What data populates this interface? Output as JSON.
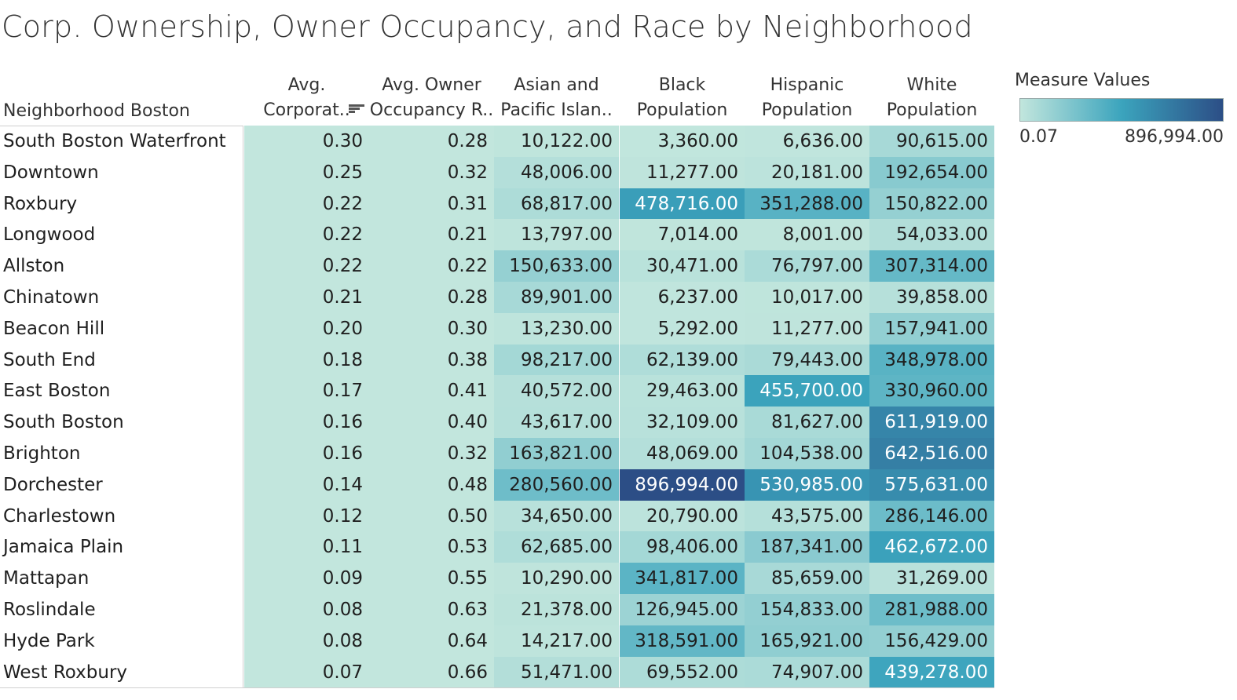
{
  "title": "Corp. Ownership, Owner Occupancy, and Race by Neighborhood",
  "row_header": "Neighborhood Boston",
  "columns": [
    [
      "Avg.",
      "Corporat.."
    ],
    [
      "Avg. Owner",
      "Occupancy R.."
    ],
    [
      "Asian and",
      "Pacific Islan.."
    ],
    [
      "Black",
      "Population"
    ],
    [
      "Hispanic",
      "Population"
    ],
    [
      "White",
      "Population"
    ]
  ],
  "legend": {
    "title": "Measure Values",
    "min_label": "0.07",
    "max_label": "896,994.00",
    "color_low": "#c2e6dd",
    "color_mid": "#3ba4bd",
    "color_high": "#2c4e86"
  },
  "chart_data": {
    "type": "heatmap",
    "title": "Corp. Ownership, Owner Occupancy, and Race by Neighborhood",
    "sorted_by": "Avg. Corporat.. (descending)",
    "color_range": [
      0.07,
      896994.0
    ],
    "rows": [
      "South Boston Waterfront",
      "Downtown",
      "Roxbury",
      "Longwood",
      "Allston",
      "Chinatown",
      "Beacon Hill",
      "South End",
      "East Boston",
      "South Boston",
      "Brighton",
      "Dorchester",
      "Charlestown",
      "Jamaica Plain",
      "Mattapan",
      "Roslindale",
      "Hyde Park",
      "West Roxbury"
    ],
    "values": [
      [
        0.3,
        0.28,
        10122.0,
        3360.0,
        6636.0,
        90615.0
      ],
      [
        0.25,
        0.32,
        48006.0,
        11277.0,
        20181.0,
        192654.0
      ],
      [
        0.22,
        0.31,
        68817.0,
        478716.0,
        351288.0,
        150822.0
      ],
      [
        0.22,
        0.21,
        13797.0,
        7014.0,
        8001.0,
        54033.0
      ],
      [
        0.22,
        0.22,
        150633.0,
        30471.0,
        76797.0,
        307314.0
      ],
      [
        0.21,
        0.28,
        89901.0,
        6237.0,
        10017.0,
        39858.0
      ],
      [
        0.2,
        0.3,
        13230.0,
        5292.0,
        11277.0,
        157941.0
      ],
      [
        0.18,
        0.38,
        98217.0,
        62139.0,
        79443.0,
        348978.0
      ],
      [
        0.17,
        0.41,
        40572.0,
        29463.0,
        455700.0,
        330960.0
      ],
      [
        0.16,
        0.4,
        43617.0,
        32109.0,
        81627.0,
        611919.0
      ],
      [
        0.16,
        0.32,
        163821.0,
        48069.0,
        104538.0,
        642516.0
      ],
      [
        0.14,
        0.48,
        280560.0,
        896994.0,
        530985.0,
        575631.0
      ],
      [
        0.12,
        0.5,
        34650.0,
        20790.0,
        43575.0,
        286146.0
      ],
      [
        0.11,
        0.53,
        62685.0,
        98406.0,
        187341.0,
        462672.0
      ],
      [
        0.09,
        0.55,
        10290.0,
        341817.0,
        85659.0,
        31269.0
      ],
      [
        0.08,
        0.63,
        21378.0,
        126945.0,
        154833.0,
        281988.0
      ],
      [
        0.08,
        0.64,
        14217.0,
        318591.0,
        165921.0,
        156429.0
      ],
      [
        0.07,
        0.66,
        51471.0,
        69552.0,
        74907.0,
        439278.0
      ]
    ]
  }
}
